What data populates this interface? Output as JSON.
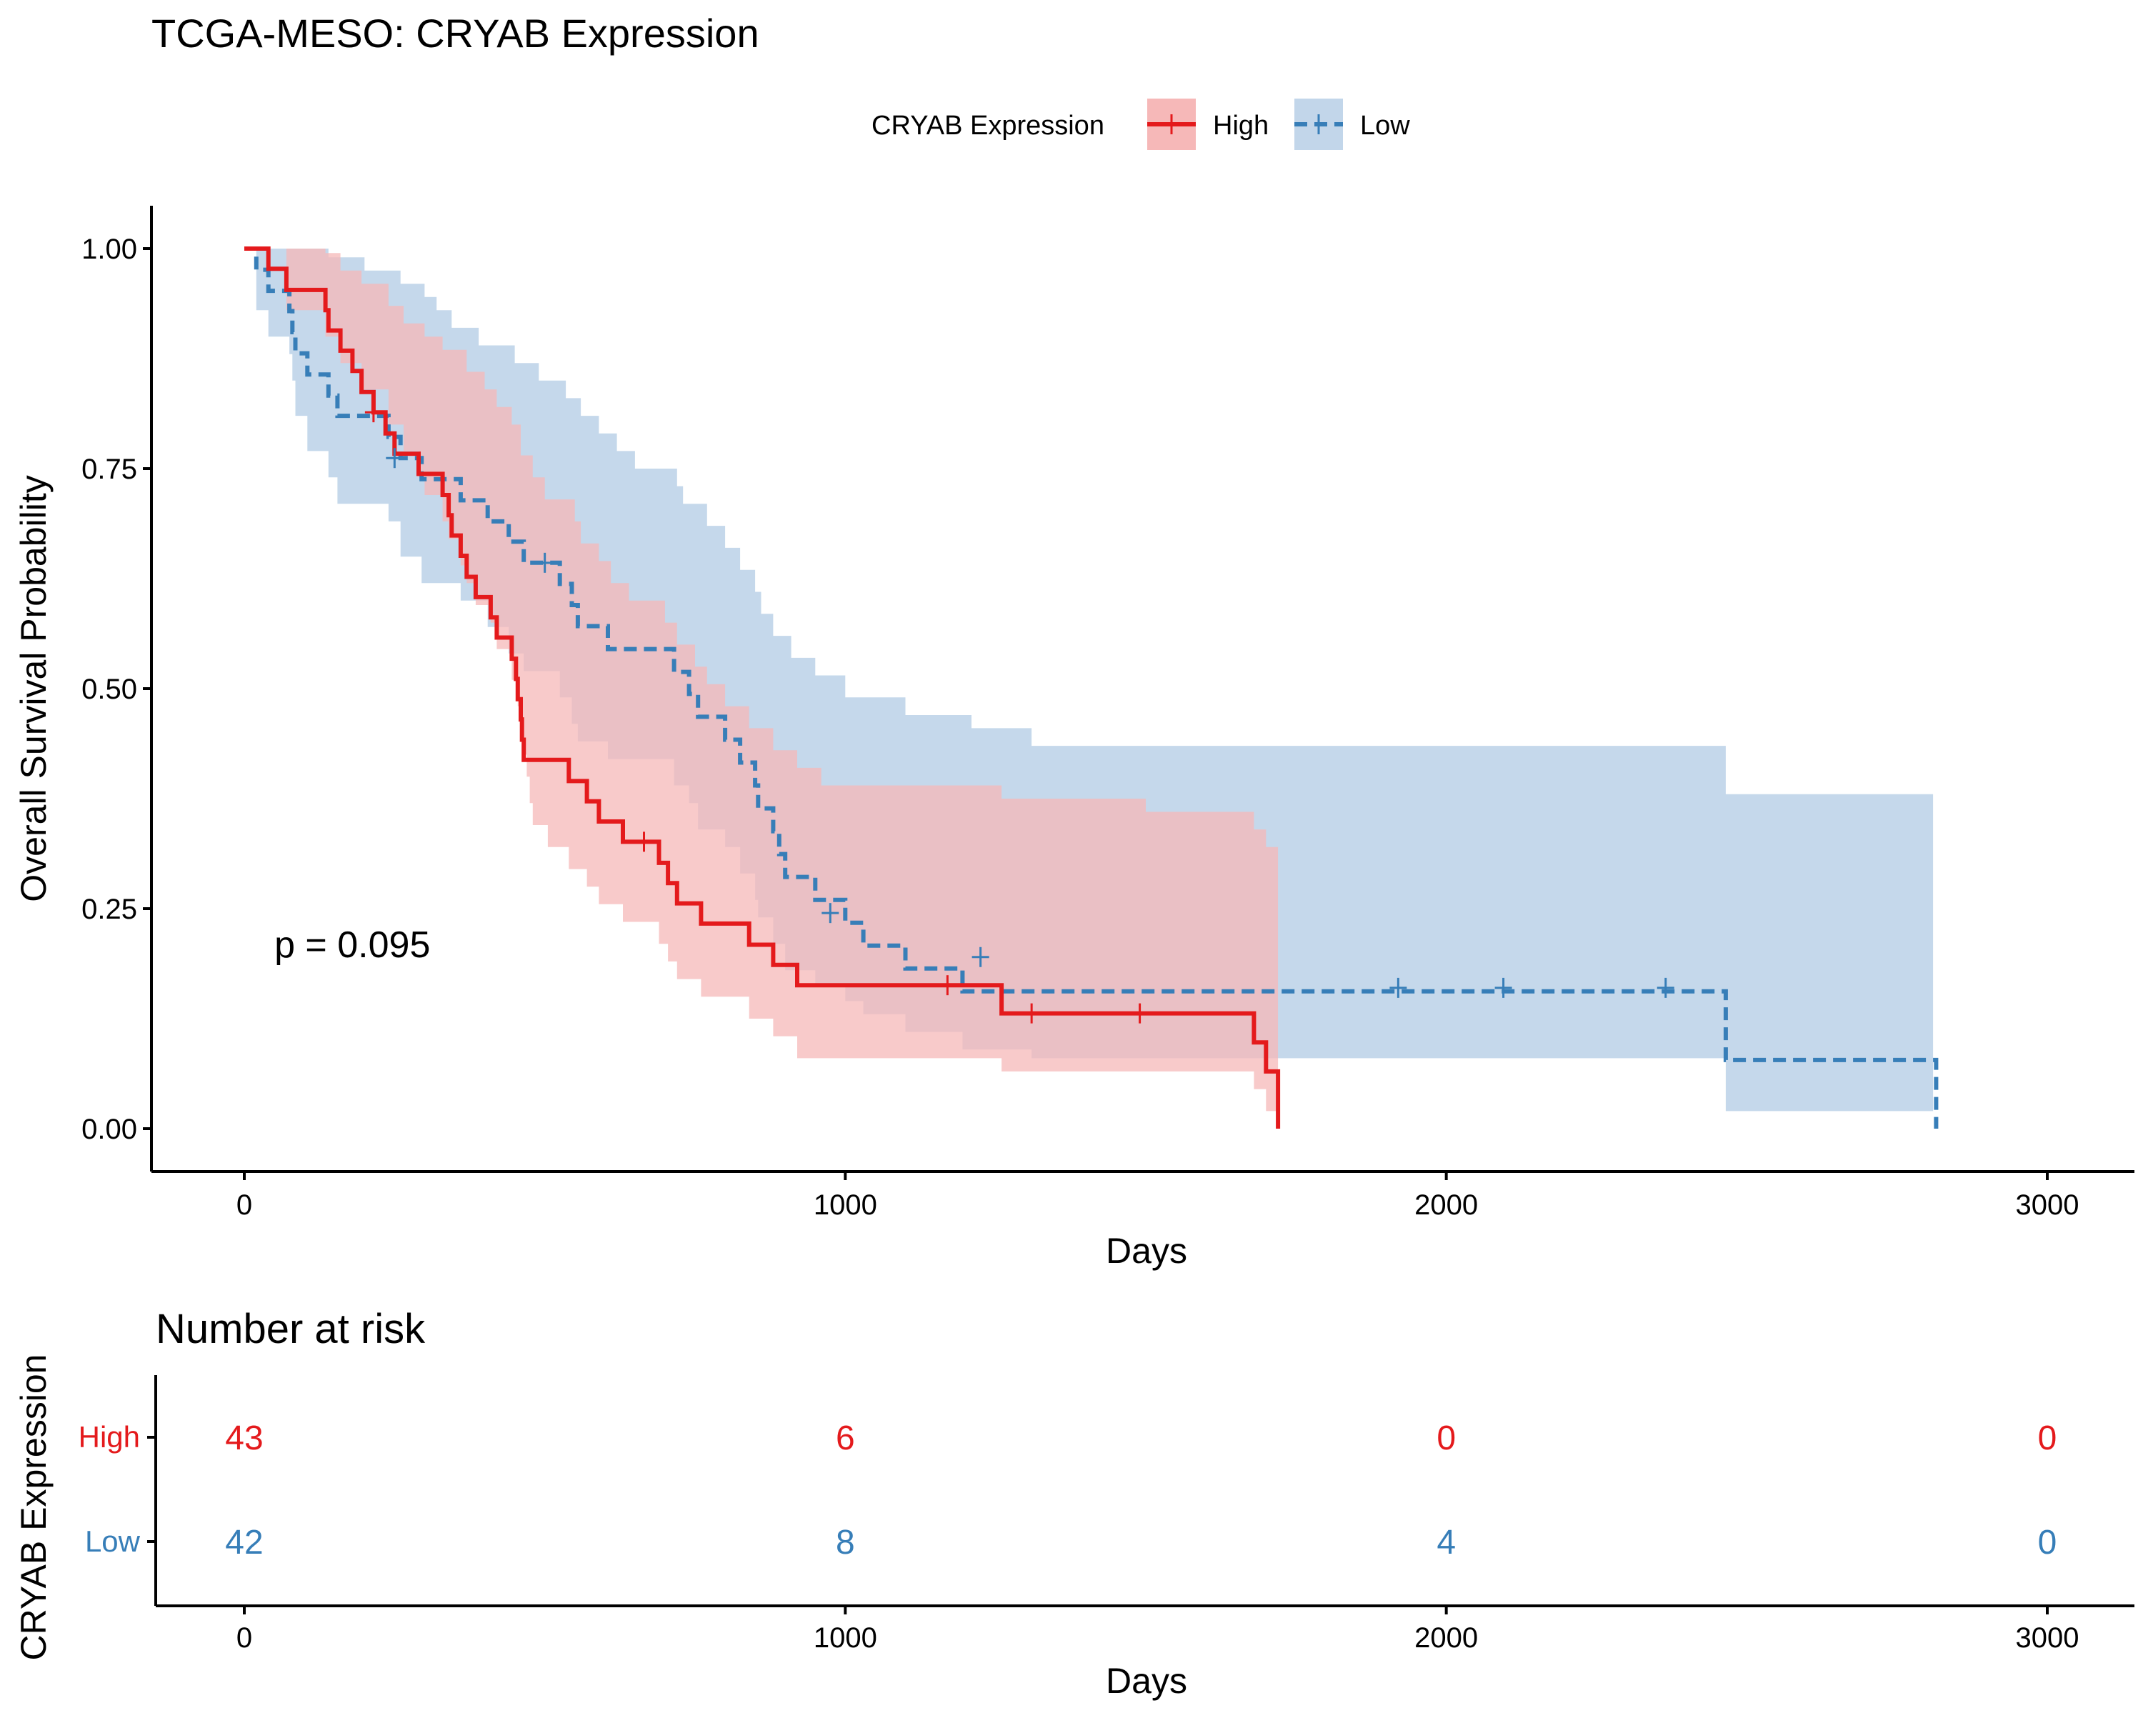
{
  "title": "TCGA-MESO: CRYAB Expression",
  "legend": {
    "title": "CRYAB Expression",
    "items": [
      {
        "name": "High",
        "color": "#E41A1C",
        "fill": "#F6B8B8",
        "dash": "solid"
      },
      {
        "name": "Low",
        "color": "#377EB8",
        "fill": "#C2D6EA",
        "dash": "dashed"
      }
    ]
  },
  "chart_data": [
    {
      "type": "line",
      "subtype": "kaplan-meier",
      "title": "TCGA-MESO: CRYAB Expression",
      "xlabel": "Days",
      "ylabel": "Overall Survival Probability",
      "xlim": [
        -150,
        3150
      ],
      "ylim": [
        -0.05,
        1.05
      ],
      "xticks": [
        0,
        1000,
        2000,
        3000
      ],
      "xtick_labels": [
        "0",
        "1000",
        "2000",
        "3000"
      ],
      "yticks": [
        0,
        0.25,
        0.5,
        0.75,
        1.0
      ],
      "ytick_labels": [
        "0.00",
        "0.25",
        "0.50",
        "0.75",
        "1.00"
      ],
      "grid": false,
      "legend_position": "top",
      "annotation": "p = 0.095",
      "annotation_at": [
        50,
        0.195
      ],
      "series": [
        {
          "name": "High",
          "color": "#E41A1C",
          "dash": "solid",
          "steps": [
            [
              0,
              1.0
            ],
            [
              40,
              0.977
            ],
            [
              70,
              0.953
            ],
            [
              135,
              0.93
            ],
            [
              140,
              0.907
            ],
            [
              160,
              0.884
            ],
            [
              180,
              0.861
            ],
            [
              195,
              0.837
            ],
            [
              215,
              0.814
            ],
            [
              235,
              0.79
            ],
            [
              250,
              0.767
            ],
            [
              260,
              0.767
            ],
            [
              290,
              0.744
            ],
            [
              330,
              0.72
            ],
            [
              340,
              0.697
            ],
            [
              345,
              0.674
            ],
            [
              360,
              0.651
            ],
            [
              370,
              0.627
            ],
            [
              385,
              0.604
            ],
            [
              410,
              0.581
            ],
            [
              420,
              0.558
            ],
            [
              445,
              0.534
            ],
            [
              452,
              0.511
            ],
            [
              455,
              0.488
            ],
            [
              460,
              0.465
            ],
            [
              462,
              0.442
            ],
            [
              465,
              0.419
            ],
            [
              540,
              0.395
            ],
            [
              570,
              0.372
            ],
            [
              590,
              0.349
            ],
            [
              630,
              0.326
            ],
            [
              690,
              0.302
            ],
            [
              705,
              0.279
            ],
            [
              720,
              0.256
            ],
            [
              760,
              0.233
            ],
            [
              840,
              0.209
            ],
            [
              880,
              0.186
            ],
            [
              920,
              0.163
            ],
            [
              1260,
              0.131
            ],
            [
              1680,
              0.098
            ],
            [
              1700,
              0.065
            ],
            [
              1720,
              0.0
            ]
          ],
          "ci_upper": [
            [
              0,
              1.0
            ],
            [
              95,
              1.0
            ],
            [
              135,
              0.995
            ],
            [
              160,
              0.975
            ],
            [
              195,
              0.96
            ],
            [
              240,
              0.935
            ],
            [
              265,
              0.915
            ],
            [
              300,
              0.9
            ],
            [
              330,
              0.885
            ],
            [
              370,
              0.86
            ],
            [
              400,
              0.84
            ],
            [
              420,
              0.82
            ],
            [
              445,
              0.8
            ],
            [
              460,
              0.765
            ],
            [
              480,
              0.74
            ],
            [
              500,
              0.715
            ],
            [
              550,
              0.69
            ],
            [
              560,
              0.665
            ],
            [
              590,
              0.645
            ],
            [
              610,
              0.62
            ],
            [
              640,
              0.6
            ],
            [
              700,
              0.575
            ],
            [
              720,
              0.55
            ],
            [
              750,
              0.525
            ],
            [
              770,
              0.505
            ],
            [
              800,
              0.48
            ],
            [
              840,
              0.455
            ],
            [
              880,
              0.43
            ],
            [
              920,
              0.41
            ],
            [
              960,
              0.39
            ],
            [
              1260,
              0.375
            ],
            [
              1500,
              0.36
            ],
            [
              1680,
              0.34
            ],
            [
              1700,
              0.32
            ],
            [
              1720,
              0.32
            ]
          ],
          "ci_lower": [
            [
              0,
              1.0
            ],
            [
              70,
              0.93
            ],
            [
              135,
              0.9
            ],
            [
              160,
              0.87
            ],
            [
              195,
              0.84
            ],
            [
              240,
              0.8
            ],
            [
              265,
              0.77
            ],
            [
              290,
              0.74
            ],
            [
              300,
              0.72
            ],
            [
              330,
              0.69
            ],
            [
              340,
              0.67
            ],
            [
              360,
              0.64
            ],
            [
              370,
              0.62
            ],
            [
              385,
              0.595
            ],
            [
              410,
              0.575
            ],
            [
              420,
              0.545
            ],
            [
              445,
              0.51
            ],
            [
              455,
              0.48
            ],
            [
              460,
              0.45
            ],
            [
              465,
              0.425
            ],
            [
              470,
              0.4
            ],
            [
              475,
              0.37
            ],
            [
              480,
              0.345
            ],
            [
              505,
              0.32
            ],
            [
              540,
              0.295
            ],
            [
              570,
              0.275
            ],
            [
              590,
              0.255
            ],
            [
              630,
              0.235
            ],
            [
              690,
              0.21
            ],
            [
              705,
              0.19
            ],
            [
              720,
              0.17
            ],
            [
              760,
              0.15
            ],
            [
              840,
              0.125
            ],
            [
              880,
              0.105
            ],
            [
              920,
              0.08
            ],
            [
              1260,
              0.065
            ],
            [
              1680,
              0.045
            ],
            [
              1700,
              0.02
            ],
            [
              1720,
              0.02
            ]
          ],
          "censor": [
            [
              215,
              0.814
            ],
            [
              665,
              0.326
            ],
            [
              1170,
              0.163
            ],
            [
              1310,
              0.131
            ],
            [
              1490,
              0.131
            ]
          ]
        },
        {
          "name": "Low",
          "color": "#377EB8",
          "dash": "dashed",
          "steps": [
            [
              0,
              1.0
            ],
            [
              20,
              0.976
            ],
            [
              40,
              0.952
            ],
            [
              75,
              0.929
            ],
            [
              80,
              0.905
            ],
            [
              85,
              0.881
            ],
            [
              105,
              0.857
            ],
            [
              140,
              0.833
            ],
            [
              155,
              0.81
            ],
            [
              240,
              0.786
            ],
            [
              260,
              0.762
            ],
            [
              295,
              0.738
            ],
            [
              360,
              0.714
            ],
            [
              405,
              0.69
            ],
            [
              440,
              0.667
            ],
            [
              465,
              0.643
            ],
            [
              525,
              0.619
            ],
            [
              545,
              0.595
            ],
            [
              555,
              0.571
            ],
            [
              605,
              0.545
            ],
            [
              715,
              0.519
            ],
            [
              740,
              0.494
            ],
            [
              755,
              0.468
            ],
            [
              800,
              0.442
            ],
            [
              825,
              0.416
            ],
            [
              850,
              0.39
            ],
            [
              855,
              0.364
            ],
            [
              880,
              0.338
            ],
            [
              890,
              0.312
            ],
            [
              900,
              0.286
            ],
            [
              950,
              0.26
            ],
            [
              1000,
              0.234
            ],
            [
              1030,
              0.208
            ],
            [
              1100,
              0.182
            ],
            [
              1195,
              0.156
            ],
            [
              1310,
              0.156
            ],
            [
              2465,
              0.078
            ],
            [
              2810,
              0.078
            ],
            [
              2815,
              0.0
            ]
          ],
          "ci_upper": [
            [
              0,
              1.0
            ],
            [
              55,
              1.0
            ],
            [
              100,
              1.0
            ],
            [
              140,
              0.99
            ],
            [
              200,
              0.975
            ],
            [
              260,
              0.96
            ],
            [
              300,
              0.945
            ],
            [
              320,
              0.93
            ],
            [
              345,
              0.91
            ],
            [
              390,
              0.89
            ],
            [
              450,
              0.87
            ],
            [
              490,
              0.85
            ],
            [
              535,
              0.83
            ],
            [
              560,
              0.81
            ],
            [
              590,
              0.79
            ],
            [
              620,
              0.77
            ],
            [
              650,
              0.75
            ],
            [
              720,
              0.73
            ],
            [
              730,
              0.71
            ],
            [
              770,
              0.685
            ],
            [
              800,
              0.66
            ],
            [
              825,
              0.635
            ],
            [
              850,
              0.61
            ],
            [
              860,
              0.585
            ],
            [
              880,
              0.56
            ],
            [
              910,
              0.535
            ],
            [
              950,
              0.515
            ],
            [
              1000,
              0.49
            ],
            [
              1100,
              0.47
            ],
            [
              1210,
              0.455
            ],
            [
              1310,
              0.435
            ],
            [
              2465,
              0.4
            ],
            [
              2465,
              0.38
            ],
            [
              2810,
              0.38
            ]
          ],
          "ci_lower": [
            [
              0,
              1.0
            ],
            [
              20,
              0.93
            ],
            [
              40,
              0.9
            ],
            [
              75,
              0.88
            ],
            [
              80,
              0.85
            ],
            [
              85,
              0.81
            ],
            [
              105,
              0.77
            ],
            [
              140,
              0.74
            ],
            [
              155,
              0.71
            ],
            [
              240,
              0.69
            ],
            [
              260,
              0.65
            ],
            [
              295,
              0.62
            ],
            [
              360,
              0.6
            ],
            [
              405,
              0.57
            ],
            [
              440,
              0.54
            ],
            [
              465,
              0.52
            ],
            [
              525,
              0.49
            ],
            [
              545,
              0.46
            ],
            [
              555,
              0.44
            ],
            [
              605,
              0.42
            ],
            [
              715,
              0.39
            ],
            [
              740,
              0.37
            ],
            [
              755,
              0.34
            ],
            [
              800,
              0.32
            ],
            [
              825,
              0.29
            ],
            [
              850,
              0.26
            ],
            [
              855,
              0.24
            ],
            [
              880,
              0.21
            ],
            [
              900,
              0.18
            ],
            [
              950,
              0.165
            ],
            [
              1000,
              0.145
            ],
            [
              1030,
              0.13
            ],
            [
              1100,
              0.11
            ],
            [
              1195,
              0.09
            ],
            [
              1310,
              0.08
            ],
            [
              2465,
              0.02
            ],
            [
              2810,
              0.02
            ]
          ],
          "censor": [
            [
              250,
              0.762
            ],
            [
              500,
              0.643
            ],
            [
              975,
              0.245
            ],
            [
              1225,
              0.195
            ],
            [
              1920,
              0.16
            ],
            [
              2095,
              0.16
            ],
            [
              2365,
              0.16
            ]
          ]
        }
      ]
    },
    {
      "type": "table",
      "title": "Number at risk",
      "xlabel": "Days",
      "ylabel": "CRYAB Expression",
      "xlim": [
        -150,
        3150
      ],
      "xticks": [
        0,
        1000,
        2000,
        3000
      ],
      "xtick_labels": [
        "0",
        "1000",
        "2000",
        "3000"
      ],
      "rows": [
        {
          "name": "High",
          "color": "#E41A1C",
          "values": [
            "43",
            "6",
            "0",
            "0"
          ]
        },
        {
          "name": "Low",
          "color": "#377EB8",
          "values": [
            "42",
            "8",
            "4",
            "0"
          ]
        }
      ]
    }
  ]
}
